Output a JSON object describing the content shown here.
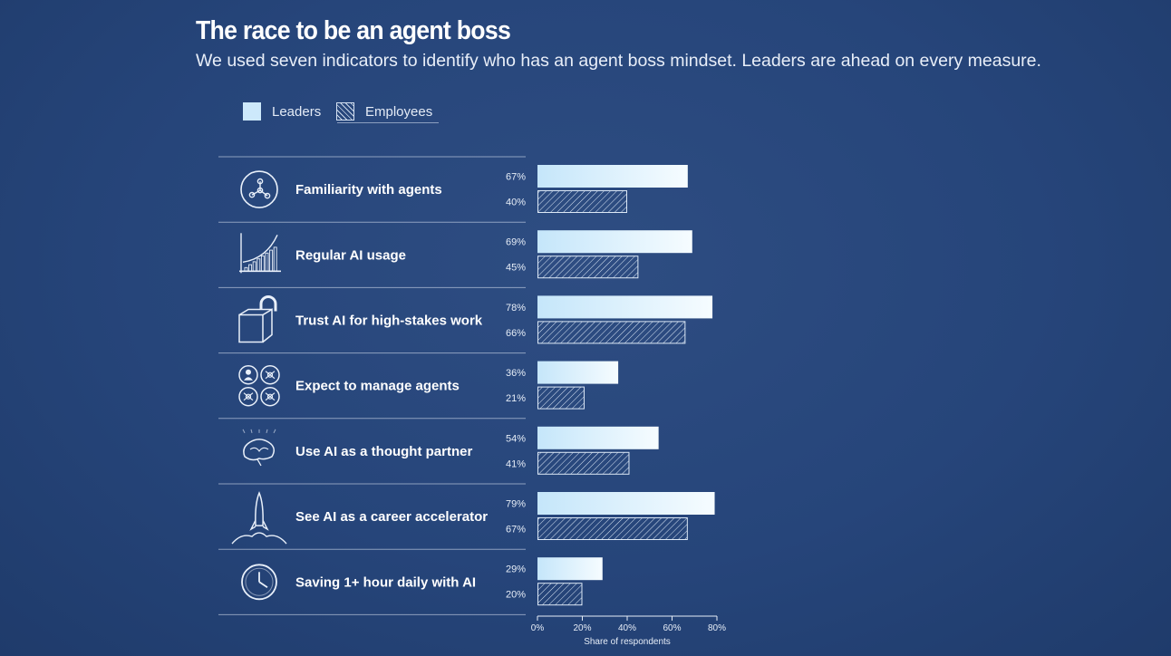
{
  "header": {
    "title": "The race to be an agent boss",
    "subtitle": "We used seven indicators to identify who has an agent boss mindset. Leaders are ahead on every measure."
  },
  "legend": {
    "leaders": "Leaders",
    "employees": "Employees"
  },
  "colors": {
    "background": "#26457a",
    "leaders_bar_start": "#cdeafb",
    "leaders_bar_end": "#f4fbff",
    "employees_hatch": "#dce8f6"
  },
  "chart_data": {
    "type": "bar",
    "orientation": "horizontal",
    "title": "The race to be an agent boss",
    "xlabel": "Share of respondents",
    "ylabel": "",
    "xlim": [
      0,
      80
    ],
    "x_ticks": [
      "0%",
      "20%",
      "40%",
      "60%",
      "80%"
    ],
    "categories": [
      "Familiarity with agents",
      "Regular AI usage",
      "Trust AI for high-stakes work",
      "Expect to manage agents",
      "Use AI as a thought partner",
      "See AI as a career accelerator",
      "Saving 1+ hour daily with AI"
    ],
    "icons": [
      "network-node-icon",
      "rising-bar-chart-icon",
      "unlocked-box-icon",
      "agents-grid-icon",
      "brain-icon",
      "rocket-icon",
      "clock-icon"
    ],
    "series": [
      {
        "name": "Leaders",
        "values": [
          67,
          69,
          78,
          36,
          54,
          79,
          29
        ],
        "labels": [
          "67%",
          "69%",
          "78%",
          "36%",
          "54%",
          "79%",
          "29%"
        ]
      },
      {
        "name": "Employees",
        "values": [
          40,
          45,
          66,
          21,
          41,
          67,
          20
        ],
        "labels": [
          "40%",
          "45%",
          "66%",
          "21%",
          "41%",
          "67%",
          "20%"
        ]
      }
    ]
  }
}
